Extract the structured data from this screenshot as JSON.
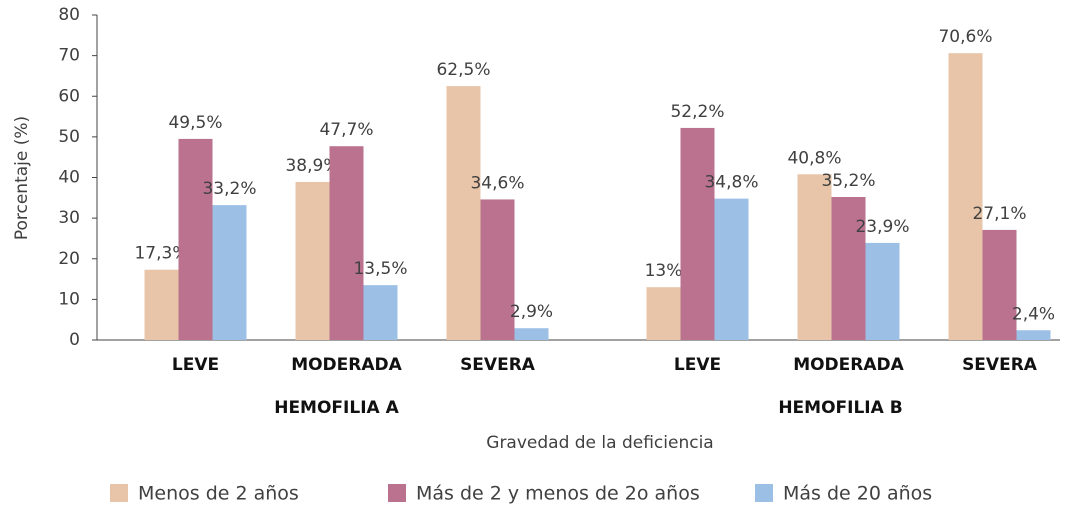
{
  "chart_data": {
    "type": "bar",
    "y_label": "Porcentaje (%)",
    "x_label": "Gravedad de la deficiencia",
    "groups": [
      {
        "name": "HEMOFILIA A",
        "categories": [
          "LEVE",
          "MODERADA",
          "SEVERA"
        ]
      },
      {
        "name": "HEMOFILIA B",
        "categories": [
          "LEVE",
          "MODERADA",
          "SEVERA"
        ]
      }
    ],
    "series": [
      {
        "name": "Menos de 2 años",
        "color": "#e8c5a8",
        "values": [
          17.3,
          38.9,
          62.5,
          13,
          40.8,
          70.6
        ],
        "value_labels": [
          "17,3%",
          "38,9%",
          "62,5%",
          "13%",
          "40,8%",
          "70,6%"
        ]
      },
      {
        "name": "Más de 2 y menos de 2o años",
        "color": "#ba728f",
        "values": [
          49.5,
          47.7,
          34.6,
          52.2,
          35.2,
          27.1
        ],
        "value_labels": [
          "49,5%",
          "47,7%",
          "34,6%",
          "52,2%",
          "35,2%",
          "27,1%"
        ]
      },
      {
        "name": "Más de 20 años",
        "color": "#9cbfe6",
        "values": [
          33.2,
          13.5,
          2.9,
          34.8,
          23.9,
          2.4
        ],
        "value_labels": [
          "33,2%",
          "13,5%",
          "2,9%",
          "34,8%",
          "23,9%",
          "2,4%"
        ]
      }
    ],
    "ylim": [
      0,
      80
    ],
    "yticks": [
      0,
      10,
      20,
      30,
      40,
      50,
      60,
      70,
      80
    ],
    "grid": false
  }
}
